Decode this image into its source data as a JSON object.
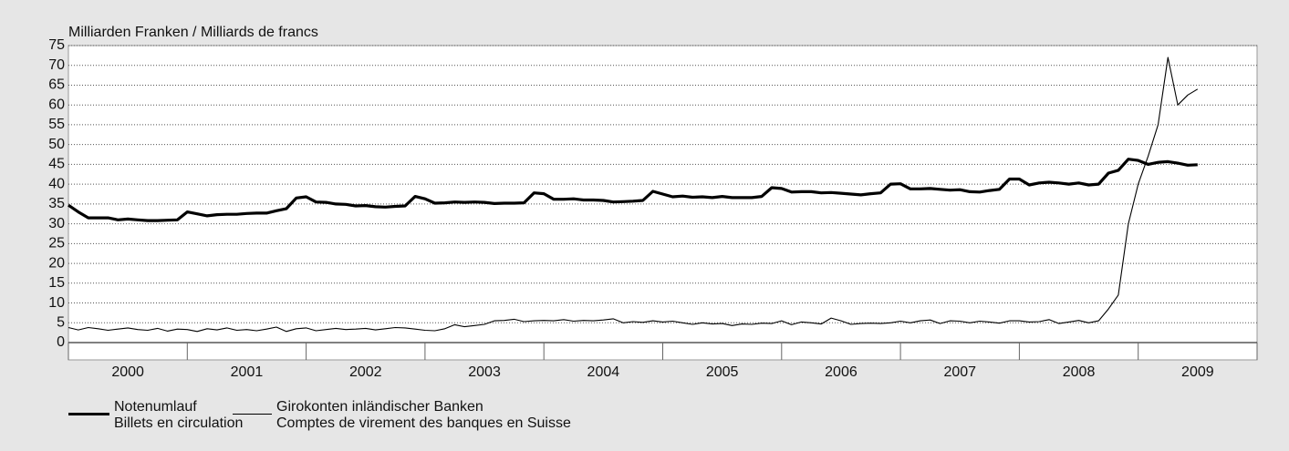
{
  "chart_data": {
    "type": "line",
    "y_label": "Milliarden Franken / Milliards de francs",
    "categories": [
      "2000",
      "2001",
      "2002",
      "2003",
      "2004",
      "2005",
      "2006",
      "2007",
      "2008",
      "2009"
    ],
    "xlim": [
      2000,
      2010
    ],
    "xticks": [
      2000,
      2001,
      2002,
      2003,
      2004,
      2005,
      2006,
      2007,
      2008,
      2009,
      2010
    ],
    "ylim": [
      0,
      75
    ],
    "yticks": [
      0,
      5,
      10,
      15,
      20,
      25,
      30,
      35,
      40,
      45,
      50,
      55,
      60,
      65,
      70,
      75
    ],
    "grid": true,
    "x": [
      2000,
      2000.083,
      2000.167,
      2000.25,
      2000.333,
      2000.417,
      2000.5,
      2000.583,
      2000.667,
      2000.75,
      2000.833,
      2000.917,
      2001,
      2001.083,
      2001.167,
      2001.25,
      2001.333,
      2001.417,
      2001.5,
      2001.583,
      2001.667,
      2001.75,
      2001.833,
      2001.917,
      2002,
      2002.083,
      2002.167,
      2002.25,
      2002.333,
      2002.417,
      2002.5,
      2002.583,
      2002.667,
      2002.75,
      2002.833,
      2002.917,
      2003,
      2003.083,
      2003.167,
      2003.25,
      2003.333,
      2003.417,
      2003.5,
      2003.583,
      2003.667,
      2003.75,
      2003.833,
      2003.917,
      2004,
      2004.083,
      2004.167,
      2004.25,
      2004.333,
      2004.417,
      2004.5,
      2004.583,
      2004.667,
      2004.75,
      2004.833,
      2004.917,
      2005,
      2005.083,
      2005.167,
      2005.25,
      2005.333,
      2005.417,
      2005.5,
      2005.583,
      2005.667,
      2005.75,
      2005.833,
      2005.917,
      2006,
      2006.083,
      2006.167,
      2006.25,
      2006.333,
      2006.417,
      2006.5,
      2006.583,
      2006.667,
      2006.75,
      2006.833,
      2006.917,
      2007,
      2007.083,
      2007.167,
      2007.25,
      2007.333,
      2007.417,
      2007.5,
      2007.583,
      2007.667,
      2007.75,
      2007.833,
      2007.917,
      2008,
      2008.083,
      2008.167,
      2008.25,
      2008.333,
      2008.417,
      2008.5,
      2008.583,
      2008.667,
      2008.75,
      2008.833,
      2008.917,
      2009,
      2009.083,
      2009.167,
      2009.25,
      2009.333,
      2009.417,
      2009.5
    ],
    "series": [
      {
        "name": "Notenumlauf\nBillets en circulation",
        "color": "#000000",
        "width": 3.2,
        "values": [
          34.7,
          33,
          31.5,
          31.5,
          31.5,
          31,
          31.2,
          31,
          30.8,
          30.8,
          30.9,
          31,
          33,
          32.5,
          32,
          32.3,
          32.4,
          32.4,
          32.6,
          32.7,
          32.7,
          33.3,
          33.8,
          36.5,
          36.8,
          35.5,
          35.4,
          35,
          34.9,
          34.5,
          34.6,
          34.3,
          34.2,
          34.4,
          34.5,
          36.9,
          36.3,
          35.2,
          35.3,
          35.5,
          35.4,
          35.5,
          35.4,
          35.1,
          35.2,
          35.2,
          35.3,
          37.8,
          37.6,
          36.2,
          36.2,
          36.3,
          36,
          36,
          35.9,
          35.5,
          35.6,
          35.7,
          35.9,
          38.2,
          37.5,
          36.8,
          37,
          36.7,
          36.8,
          36.6,
          36.9,
          36.6,
          36.6,
          36.6,
          36.9,
          39.1,
          38.9,
          38,
          38.1,
          38.1,
          37.8,
          37.9,
          37.7,
          37.5,
          37.3,
          37.6,
          37.8,
          40,
          40.1,
          38.8,
          38.8,
          38.9,
          38.7,
          38.5,
          38.6,
          38.1,
          38,
          38.4,
          38.7,
          41.3,
          41.3,
          39.8,
          40.3,
          40.5,
          40.3,
          40,
          40.3,
          39.8,
          40,
          42.8,
          43.5,
          46.3,
          46,
          45,
          45.5,
          45.7,
          45.3,
          44.8,
          44.9
        ]
      },
      {
        "name": "Girokonten inländischer Banken\nComptes de virement des banques en Suisse",
        "color": "#000000",
        "width": 1.1,
        "values": [
          3.8,
          3.2,
          3.8,
          3.5,
          3.1,
          3.4,
          3.7,
          3.3,
          3.1,
          3.6,
          2.9,
          3.4,
          3.3,
          2.8,
          3.5,
          3.2,
          3.7,
          3.1,
          3.3,
          3,
          3.4,
          3.9,
          2.8,
          3.5,
          3.7,
          3,
          3.3,
          3.6,
          3.3,
          3.4,
          3.6,
          3.2,
          3.5,
          3.8,
          3.7,
          3.4,
          3.1,
          3,
          3.5,
          4.5,
          4,
          4.3,
          4.6,
          5.5,
          5.6,
          5.9,
          5.3,
          5.5,
          5.6,
          5.5,
          5.8,
          5.4,
          5.6,
          5.5,
          5.7,
          6,
          5,
          5.3,
          5.1,
          5.5,
          5.2,
          5.4,
          5,
          4.6,
          5,
          4.7,
          4.8,
          4.3,
          4.7,
          4.6,
          4.9,
          4.8,
          5.5,
          4.5,
          5.2,
          5,
          4.7,
          6.2,
          5.5,
          4.6,
          4.8,
          4.9,
          4.8,
          5,
          5.4,
          5,
          5.5,
          5.7,
          4.8,
          5.5,
          5.4,
          5,
          5.4,
          5.2,
          4.9,
          5.5,
          5.5,
          5.2,
          5.3,
          5.8,
          4.8,
          5.2,
          5.6,
          5,
          5.5,
          8.5,
          12,
          30,
          40,
          47,
          55,
          72,
          60,
          62.5,
          64
        ]
      }
    ]
  }
}
